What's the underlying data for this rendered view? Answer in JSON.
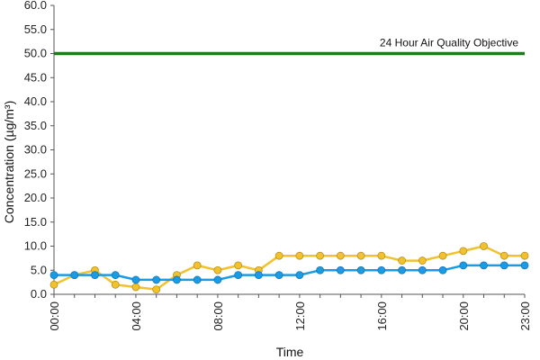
{
  "chart_data": {
    "type": "line",
    "xlabel": "Time",
    "ylabel": "Concentration (µg/m³)",
    "ylim": [
      0,
      60
    ],
    "yticks": [
      "0.0",
      "5.0",
      "10.0",
      "15.0",
      "20.0",
      "25.0",
      "30.0",
      "35.0",
      "40.0",
      "45.0",
      "50.0",
      "55.0",
      "60.0"
    ],
    "ytick_values": [
      0,
      5,
      10,
      15,
      20,
      25,
      30,
      35,
      40,
      45,
      50,
      55,
      60
    ],
    "x": [
      "00:00",
      "01:00",
      "02:00",
      "03:00",
      "04:00",
      "05:00",
      "06:00",
      "07:00",
      "08:00",
      "09:00",
      "10:00",
      "11:00",
      "12:00",
      "13:00",
      "14:00",
      "15:00",
      "16:00",
      "17:00",
      "18:00",
      "19:00",
      "20:00",
      "21:00",
      "22:00",
      "23:00"
    ],
    "xticks": [
      "00:00",
      "04:00",
      "08:00",
      "12:00",
      "16:00",
      "20:00",
      "23:00"
    ],
    "xtick_index": [
      0,
      4,
      8,
      12,
      16,
      20,
      23
    ],
    "grid": false,
    "legend": "none",
    "series": [
      {
        "color": "#f2c12e",
        "values": [
          2,
          4,
          5,
          2,
          1.5,
          1,
          4,
          6,
          5,
          6,
          5,
          8,
          8,
          8,
          8,
          8,
          8,
          7,
          7,
          8,
          9,
          10,
          8,
          8
        ]
      },
      {
        "color": "#1a9be6",
        "values": [
          4,
          4,
          4,
          4,
          3,
          3,
          3,
          3,
          3,
          4,
          4,
          4,
          4,
          5,
          5,
          5,
          5,
          5,
          5,
          5,
          6,
          6,
          6,
          6
        ]
      }
    ],
    "reference_line": {
      "value": 50,
      "label": "24 Hour Air Quality Objective",
      "color": "#1e7a1e"
    }
  }
}
